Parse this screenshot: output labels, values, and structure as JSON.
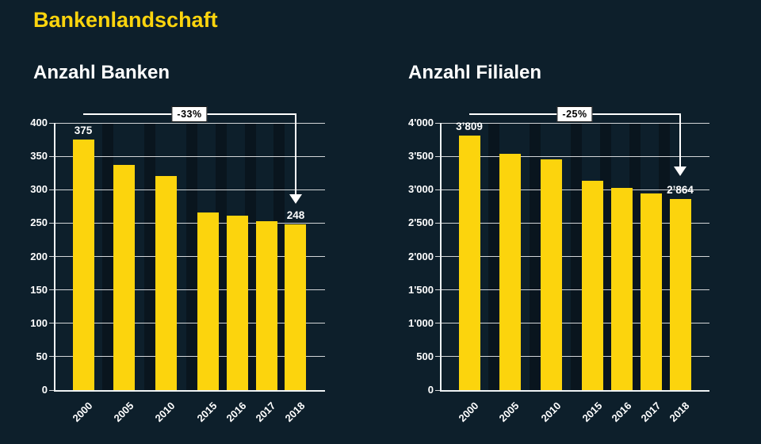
{
  "page": {
    "title": "Bankenlandschaft",
    "background_color": "#0d1f2b",
    "accent_color": "#fcd40d",
    "text_color": "#ffffff"
  },
  "chart_data": [
    {
      "type": "bar",
      "title": "Anzahl Banken",
      "categories": [
        "2000",
        "2005",
        "2010",
        "2015",
        "2016",
        "2017",
        "2018"
      ],
      "values": [
        375,
        337,
        320,
        266,
        261,
        253,
        248
      ],
      "ylim": [
        0,
        400
      ],
      "ytick_labels": [
        "0",
        "50",
        "100",
        "150",
        "200",
        "250",
        "300",
        "350",
        "400"
      ],
      "bar_color": "#fcd40d",
      "grid": true,
      "legend": null,
      "value_labels": [
        {
          "category": "2000",
          "text": "375"
        },
        {
          "category": "2018",
          "text": "248"
        }
      ],
      "annotation": {
        "text": "-33%",
        "from_category": "2000",
        "to_category": "2018"
      }
    },
    {
      "type": "bar",
      "title": "Anzahl Filialen",
      "categories": [
        "2000",
        "2005",
        "2010",
        "2015",
        "2016",
        "2017",
        "2018"
      ],
      "values": [
        3809,
        3540,
        3450,
        3130,
        3030,
        2940,
        2864
      ],
      "ylim": [
        0,
        4000
      ],
      "ytick_labels": [
        "0",
        "500",
        "1'000",
        "1'500",
        "2'000",
        "2'500",
        "3'000",
        "3'500",
        "4'000"
      ],
      "bar_color": "#fcd40d",
      "grid": true,
      "legend": null,
      "value_labels": [
        {
          "category": "2000",
          "text": "3’809"
        },
        {
          "category": "2018",
          "text": "2’864"
        }
      ],
      "annotation": {
        "text": "-25%",
        "from_category": "2000",
        "to_category": "2018"
      }
    }
  ]
}
